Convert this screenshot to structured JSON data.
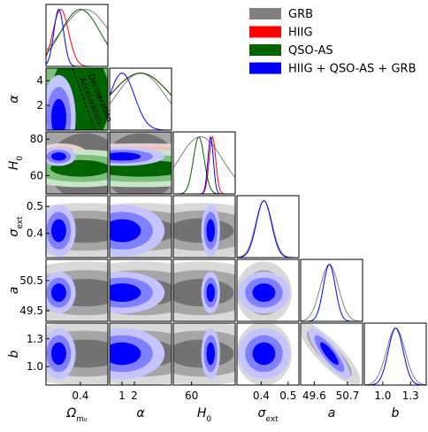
{
  "chart_data": {
    "type": "corner",
    "parameters": [
      {
        "label": {
          "main": "Ω",
          "sub": "m₀"
        },
        "range": [
          0.05,
          0.68
        ],
        "xticks": [
          0.4
        ]
      },
      {
        "label": {
          "main": "α"
        },
        "range": [
          0,
          5
        ],
        "xticks": [
          1,
          2
        ],
        "yticks": [
          2,
          4
        ]
      },
      {
        "label": {
          "main": "H",
          "sub": "0"
        },
        "range": [
          50,
          84
        ],
        "xticks": [
          60
        ],
        "yticks": [
          60,
          80
        ]
      },
      {
        "label": {
          "main": "σ",
          "sub": "ext"
        },
        "range": [
          0.31,
          0.54
        ],
        "xticks": [
          0.4,
          0.5
        ],
        "yticks": [
          0.4,
          0.5
        ]
      },
      {
        "label": {
          "main": "a"
        },
        "range": [
          49.15,
          51.2
        ],
        "xticks": [
          49.6,
          50.7
        ],
        "yticks": [
          49.5,
          50.5
        ]
      },
      {
        "label": {
          "main": "b"
        },
        "range": [
          0.8,
          1.47
        ],
        "xticks": [
          {
            "value": 1,
            "label": "1.0"
          },
          1.3
        ],
        "yticks": [
          {
            "value": 1,
            "label": "1.0"
          },
          1.3
        ]
      }
    ],
    "datasets": [
      {
        "name": "GRB",
        "color": "#808080",
        "fills": [
          "#d9d9d9",
          "#a6a6a6",
          "#737373"
        ],
        "mean": [
          0.45,
          2.5,
          65,
          0.41,
          50.1,
          1.14
        ],
        "sd": [
          0.25,
          2.0,
          12,
          0.03,
          0.3,
          0.1
        ],
        "corr_a_b": -0.85
      },
      {
        "name": "HIIG",
        "color": "#ff0000",
        "fills": [
          "#fde0e0",
          "#f8b8b8",
          "#f49090"
        ],
        "mean": [
          0.2,
          2.5,
          71.5,
          null,
          null,
          null
        ],
        "sd": [
          0.08,
          2.5,
          1.8,
          null,
          null,
          null
        ],
        "corr_a_b": null
      },
      {
        "name": "QSO-AS",
        "color": "#006400",
        "fills": [
          "#c8e6c8",
          "#7fbf7f",
          "#006400"
        ],
        "mean": [
          0.4,
          2.5,
          64,
          null,
          null,
          null
        ],
        "sd": [
          0.2,
          2.5,
          3,
          null,
          null,
          null
        ],
        "corr_a_b": null
      },
      {
        "name": "HIIG + QSO-AS + GRB",
        "color": "#0000ff",
        "fills": [
          "#c4c4ff",
          "#8080ff",
          "#0000ff"
        ],
        "mean": [
          0.18,
          1.0,
          70.5,
          0.41,
          50.1,
          1.14
        ],
        "sd": [
          0.05,
          1.0,
          1.5,
          0.028,
          0.2,
          0.08
        ],
        "corr_a_b": -0.85
      }
    ],
    "annotations": [
      "Deceleration",
      "Acceleration"
    ]
  }
}
